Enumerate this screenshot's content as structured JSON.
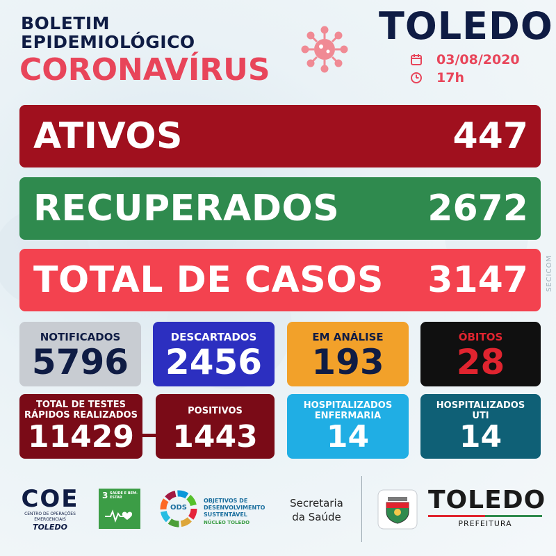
{
  "header": {
    "line1": "BOLETIM",
    "line2": "EPIDEMIOLÓGICO",
    "line3": "CORONAVÍRUS",
    "city": "TOLEDO",
    "date": "03/08/2020",
    "time": "17h"
  },
  "bars": [
    {
      "label": "ATIVOS",
      "value": "447",
      "color": "#a0101e"
    },
    {
      "label": "RECUPERADOS",
      "value": "2672",
      "color": "#2f8a4e"
    },
    {
      "label": "TOTAL DE CASOS",
      "value": "3147",
      "color": "#f3424f"
    }
  ],
  "stats_row1": [
    {
      "label": "NOTIFICADOS",
      "value": "5796",
      "bg": "#c8ccd2",
      "label_color": "#0f1c44",
      "value_color": "#0f1c44"
    },
    {
      "label": "DESCARTADOS",
      "value": "2456",
      "bg": "#2c2fc0",
      "label_color": "#ffffff",
      "value_color": "#ffffff"
    },
    {
      "label": "EM ANÁLISE",
      "value": "193",
      "bg": "#f2a12a",
      "label_color": "#0f1c44",
      "value_color": "#0f1c44"
    },
    {
      "label": "ÓBITOS",
      "value": "28",
      "bg": "#101010",
      "label_color": "#e0242f",
      "value_color": "#e0242f"
    }
  ],
  "stats_row2": {
    "tests": {
      "label_line1": "TOTAL DE TESTES",
      "label_line2": "RÁPIDOS REALIZADOS",
      "value": "11429",
      "bg": "#7a0b17"
    },
    "positive": {
      "label": "POSITIVOS",
      "value": "1443",
      "bg": "#7a0b17"
    },
    "ward": {
      "label_line1": "HOSPITALIZADOS",
      "label_line2": "ENFERMARIA",
      "value": "14",
      "bg": "#20aee4"
    },
    "icu": {
      "label_line1": "HOSPITALIZADOS",
      "label_line2": "UTI",
      "value": "14",
      "bg": "#0f6076"
    }
  },
  "side_credit": "SECICOM",
  "footer": {
    "coe_logo": "COE",
    "coe_sub": "CENTRO DE OPERAÇÕES EMERGENCIAIS",
    "coe_city": "TOLEDO",
    "sdg_number": "3",
    "sdg_text": "SAÚDE E BEM-ESTAR",
    "ods_label": "ODS",
    "ods_line1": "OBJETIVOS DE",
    "ods_line2": "DESENVOLVIMENTO",
    "ods_line3": "SUSTENTÁVEL",
    "ods_line4": "NÚCLEO TOLEDO",
    "secretaria_line1": "Secretaria",
    "secretaria_line2": "da Saúde",
    "brand": "TOLEDO",
    "brand_sub": "PREFEITURA"
  },
  "icons": {
    "virus": "virus-icon",
    "calendar": "calendar-icon",
    "clock": "clock-icon"
  }
}
